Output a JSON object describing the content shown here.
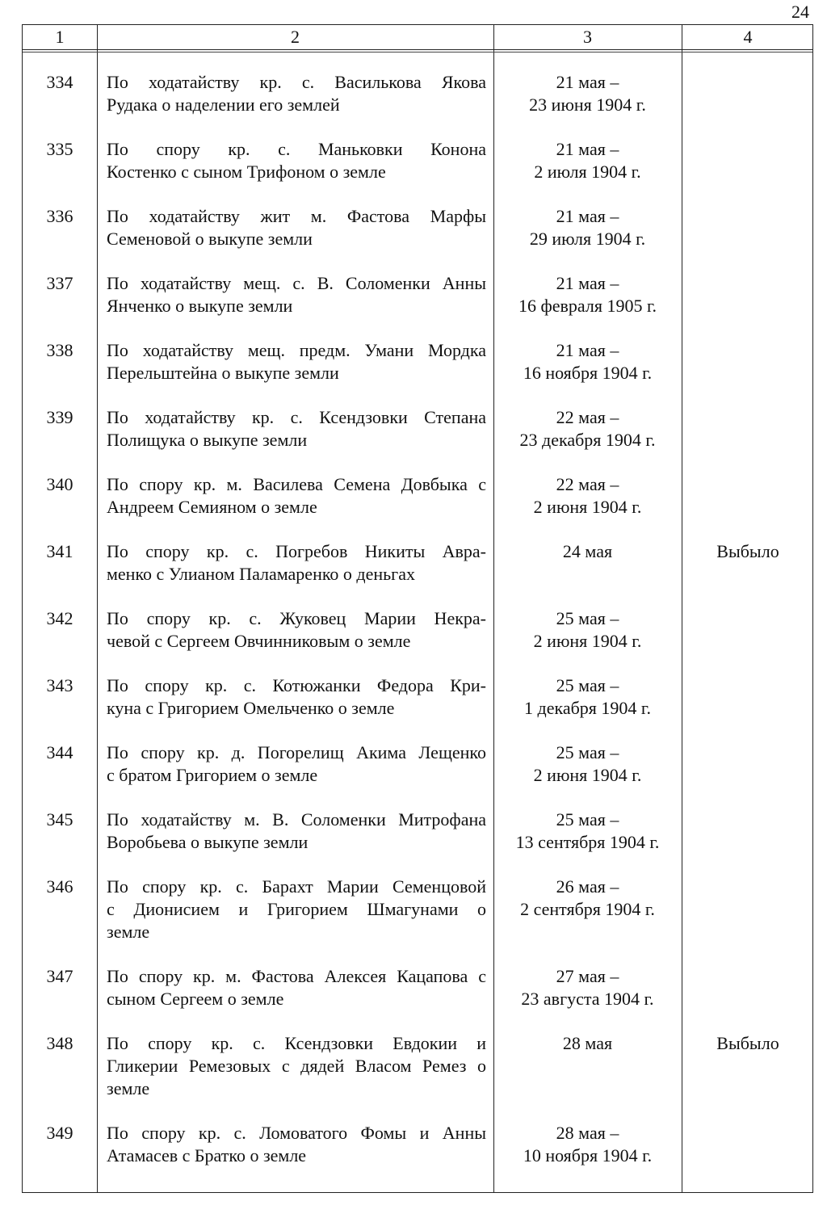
{
  "page_number": "24",
  "header": [
    "1",
    "2",
    "3",
    "4"
  ],
  "rows": [
    {
      "num": "334",
      "lines": [
        "По ходатайству кр. с. Василькова Якова",
        "Рудака о наделении его землей"
      ],
      "dates": [
        "21 мая –",
        "23 июня 1904 г."
      ],
      "note": ""
    },
    {
      "num": "335",
      "lines": [
        "По спору кр. с. Маньковки Конона",
        "Костенко с сыном Трифоном о земле"
      ],
      "dates": [
        "21 мая –",
        "2 июля 1904 г."
      ],
      "note": ""
    },
    {
      "num": "336",
      "lines": [
        "По ходатайству жит м. Фастова Марфы",
        "Семеновой о выкупе земли"
      ],
      "dates": [
        "21 мая –",
        "29 июля 1904 г."
      ],
      "note": ""
    },
    {
      "num": "337",
      "lines": [
        "По ходатайству мещ. с. В. Соломенки Анны",
        "Янченко о выкупе земли"
      ],
      "dates": [
        "21 мая –",
        "16 февраля 1905 г."
      ],
      "note": ""
    },
    {
      "num": "338",
      "lines": [
        "По ходатайству мещ. предм. Умани Мордка",
        "Перельштейна о выкупе земли"
      ],
      "dates": [
        "21 мая –",
        "16 ноября 1904 г."
      ],
      "note": ""
    },
    {
      "num": "339",
      "lines": [
        "По ходатайству кр. с. Ксендзовки Степана",
        "Полищука о выкупе земли"
      ],
      "dates": [
        "22 мая –",
        "23 декабря 1904 г."
      ],
      "note": ""
    },
    {
      "num": "340",
      "lines": [
        "По спору кр. м. Василева Семена Довбыка с",
        "Андреем Семияном о земле"
      ],
      "dates": [
        "22 мая –",
        "2 июня 1904 г."
      ],
      "note": ""
    },
    {
      "num": "341",
      "lines": [
        "По спору кр. с. Погребов Никиты Авра-",
        "менко с Улианом Паламаренко о деньгах"
      ],
      "dates": [
        "24 мая"
      ],
      "note": "Выбыло"
    },
    {
      "num": "342",
      "lines": [
        "По спору кр. с. Жуковец Марии Некра-",
        "чевой с Сергеем Овчинниковым о земле"
      ],
      "dates": [
        "25 мая –",
        "2 июня 1904 г."
      ],
      "note": ""
    },
    {
      "num": "343",
      "lines": [
        "По спору кр. с. Котюжанки Федора Кри-",
        "куна с Григорием Омельченко о земле"
      ],
      "dates": [
        "25 мая –",
        "1 декабря 1904 г."
      ],
      "note": ""
    },
    {
      "num": "344",
      "lines": [
        "По спору кр. д. Погорелищ Акима Лещенко",
        "с братом Григорием о земле"
      ],
      "dates": [
        "25 мая –",
        "2 июня 1904 г."
      ],
      "note": ""
    },
    {
      "num": "345",
      "lines": [
        "По ходатайству м. В. Соломенки Митрофана",
        "Воробьева о выкупе земли"
      ],
      "dates": [
        "25 мая –",
        "13 сентября 1904 г."
      ],
      "note": ""
    },
    {
      "num": "346",
      "lines": [
        "По спору кр. с. Барахт Марии Семенцовой",
        "с Дионисием и Григорием Шмагунами о",
        "земле"
      ],
      "dates": [
        "26 мая –",
        "2 сентября 1904 г."
      ],
      "note": ""
    },
    {
      "num": "347",
      "lines": [
        "По спору кр. м. Фастова Алексея Кацапова с",
        "сыном Сергеем о земле"
      ],
      "dates": [
        "27 мая –",
        "23 августа 1904 г."
      ],
      "note": ""
    },
    {
      "num": "348",
      "lines": [
        "По спору кр. с. Ксендзовки Евдокии и",
        "Гликерии Ремезовых с дядей Власом Ремез о",
        "земле"
      ],
      "dates": [
        "28 мая"
      ],
      "note": "Выбыло"
    },
    {
      "num": "349",
      "lines": [
        "По спору кр. с. Ломоватого Фомы и Анны",
        "Атамасев с Братко о земле"
      ],
      "dates": [
        "28 мая –",
        "10 ноября 1904 г."
      ],
      "note": ""
    }
  ]
}
